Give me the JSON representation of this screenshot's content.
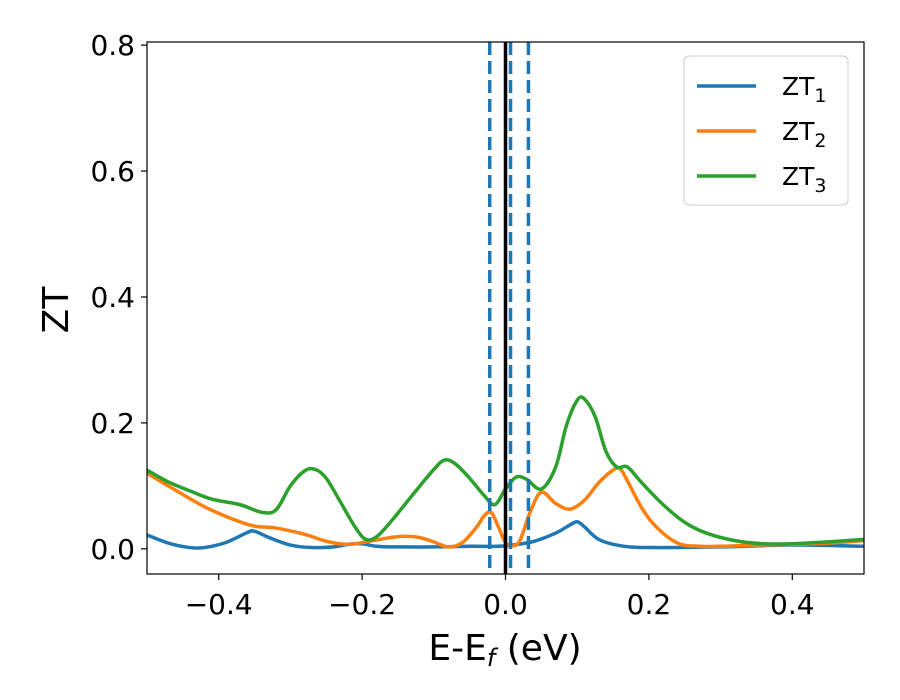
{
  "chart_data": {
    "type": "line",
    "xlabel": "E-E",
    "xlabel_sub": "f",
    "xlabel_unit": " (eV)",
    "ylabel": "ZT",
    "xlim": [
      -0.5,
      0.5
    ],
    "ylim": [
      -0.04,
      0.805
    ],
    "xticks": [
      -0.4,
      -0.2,
      0.0,
      0.2,
      0.4
    ],
    "xtick_labels": [
      "−0.4",
      "−0.2",
      "0.0",
      "0.2",
      "0.4"
    ],
    "yticks": [
      0.0,
      0.2,
      0.4,
      0.6,
      0.8
    ],
    "ytick_labels": [
      "0.0",
      "0.2",
      "0.4",
      "0.6",
      "0.8"
    ],
    "legend_position": "top-right",
    "vertical_lines": [
      {
        "x": 0.0,
        "style": "solid",
        "color": "#000000"
      },
      {
        "x": -0.022,
        "style": "dashed",
        "color": "#1f77b4"
      },
      {
        "x": 0.007,
        "style": "dashed",
        "color": "#1f77b4"
      },
      {
        "x": 0.032,
        "style": "dashed",
        "color": "#1f77b4"
      }
    ],
    "series": [
      {
        "name": "ZT",
        "subscript": "1",
        "color": "#1f77b4",
        "points": [
          [
            -0.5,
            0.022
          ],
          [
            -0.47,
            0.009
          ],
          [
            -0.44,
            0.002
          ],
          [
            -0.42,
            0.002
          ],
          [
            -0.39,
            0.01
          ],
          [
            -0.36,
            0.026
          ],
          [
            -0.35,
            0.028
          ],
          [
            -0.33,
            0.018
          ],
          [
            -0.3,
            0.006
          ],
          [
            -0.27,
            0.002
          ],
          [
            -0.24,
            0.003
          ],
          [
            -0.22,
            0.007
          ],
          [
            -0.2,
            0.008
          ],
          [
            -0.18,
            0.004
          ],
          [
            -0.15,
            0.003
          ],
          [
            -0.1,
            0.003
          ],
          [
            -0.05,
            0.004
          ],
          [
            -0.01,
            0.004
          ],
          [
            0.01,
            0.006
          ],
          [
            0.04,
            0.012
          ],
          [
            0.07,
            0.025
          ],
          [
            0.09,
            0.038
          ],
          [
            0.1,
            0.043
          ],
          [
            0.11,
            0.035
          ],
          [
            0.13,
            0.015
          ],
          [
            0.16,
            0.005
          ],
          [
            0.2,
            0.002
          ],
          [
            0.3,
            0.003
          ],
          [
            0.4,
            0.006
          ],
          [
            0.5,
            0.004
          ]
        ]
      },
      {
        "name": "ZT",
        "subscript": "2",
        "color": "#ff7f0e",
        "points": [
          [
            -0.5,
            0.12
          ],
          [
            -0.46,
            0.093
          ],
          [
            -0.42,
            0.067
          ],
          [
            -0.38,
            0.047
          ],
          [
            -0.35,
            0.036
          ],
          [
            -0.32,
            0.033
          ],
          [
            -0.28,
            0.023
          ],
          [
            -0.25,
            0.012
          ],
          [
            -0.22,
            0.007
          ],
          [
            -0.19,
            0.012
          ],
          [
            -0.16,
            0.018
          ],
          [
            -0.14,
            0.02
          ],
          [
            -0.12,
            0.018
          ],
          [
            -0.1,
            0.011
          ],
          [
            -0.08,
            0.003
          ],
          [
            -0.06,
            0.01
          ],
          [
            -0.04,
            0.035
          ],
          [
            -0.03,
            0.052
          ],
          [
            -0.02,
            0.058
          ],
          [
            -0.01,
            0.035
          ],
          [
            0.0,
            0.01
          ],
          [
            0.01,
            0.005
          ],
          [
            0.02,
            0.013
          ],
          [
            0.035,
            0.06
          ],
          [
            0.05,
            0.09
          ],
          [
            0.07,
            0.072
          ],
          [
            0.09,
            0.063
          ],
          [
            0.11,
            0.077
          ],
          [
            0.13,
            0.105
          ],
          [
            0.15,
            0.125
          ],
          [
            0.16,
            0.127
          ],
          [
            0.17,
            0.108
          ],
          [
            0.19,
            0.065
          ],
          [
            0.21,
            0.035
          ],
          [
            0.24,
            0.009
          ],
          [
            0.27,
            0.004
          ],
          [
            0.3,
            0.004
          ],
          [
            0.35,
            0.006
          ],
          [
            0.4,
            0.007
          ],
          [
            0.45,
            0.009
          ],
          [
            0.5,
            0.013
          ]
        ]
      },
      {
        "name": "ZT",
        "subscript": "3",
        "color": "#2ca02c",
        "points": [
          [
            -0.5,
            0.125
          ],
          [
            -0.47,
            0.106
          ],
          [
            -0.44,
            0.092
          ],
          [
            -0.41,
            0.079
          ],
          [
            -0.37,
            0.07
          ],
          [
            -0.34,
            0.058
          ],
          [
            -0.32,
            0.062
          ],
          [
            -0.3,
            0.1
          ],
          [
            -0.28,
            0.124
          ],
          [
            -0.265,
            0.126
          ],
          [
            -0.25,
            0.112
          ],
          [
            -0.23,
            0.074
          ],
          [
            -0.21,
            0.035
          ],
          [
            -0.195,
            0.015
          ],
          [
            -0.18,
            0.019
          ],
          [
            -0.16,
            0.043
          ],
          [
            -0.13,
            0.085
          ],
          [
            -0.1,
            0.126
          ],
          [
            -0.085,
            0.141
          ],
          [
            -0.07,
            0.135
          ],
          [
            -0.05,
            0.112
          ],
          [
            -0.03,
            0.085
          ],
          [
            -0.015,
            0.07
          ],
          [
            0.0,
            0.095
          ],
          [
            0.015,
            0.114
          ],
          [
            0.03,
            0.11
          ],
          [
            0.05,
            0.095
          ],
          [
            0.07,
            0.13
          ],
          [
            0.085,
            0.196
          ],
          [
            0.1,
            0.236
          ],
          [
            0.11,
            0.238
          ],
          [
            0.125,
            0.21
          ],
          [
            0.14,
            0.155
          ],
          [
            0.155,
            0.13
          ],
          [
            0.17,
            0.13
          ],
          [
            0.19,
            0.105
          ],
          [
            0.22,
            0.07
          ],
          [
            0.25,
            0.042
          ],
          [
            0.28,
            0.025
          ],
          [
            0.32,
            0.013
          ],
          [
            0.36,
            0.008
          ],
          [
            0.4,
            0.008
          ],
          [
            0.45,
            0.011
          ],
          [
            0.5,
            0.015
          ]
        ]
      }
    ]
  }
}
